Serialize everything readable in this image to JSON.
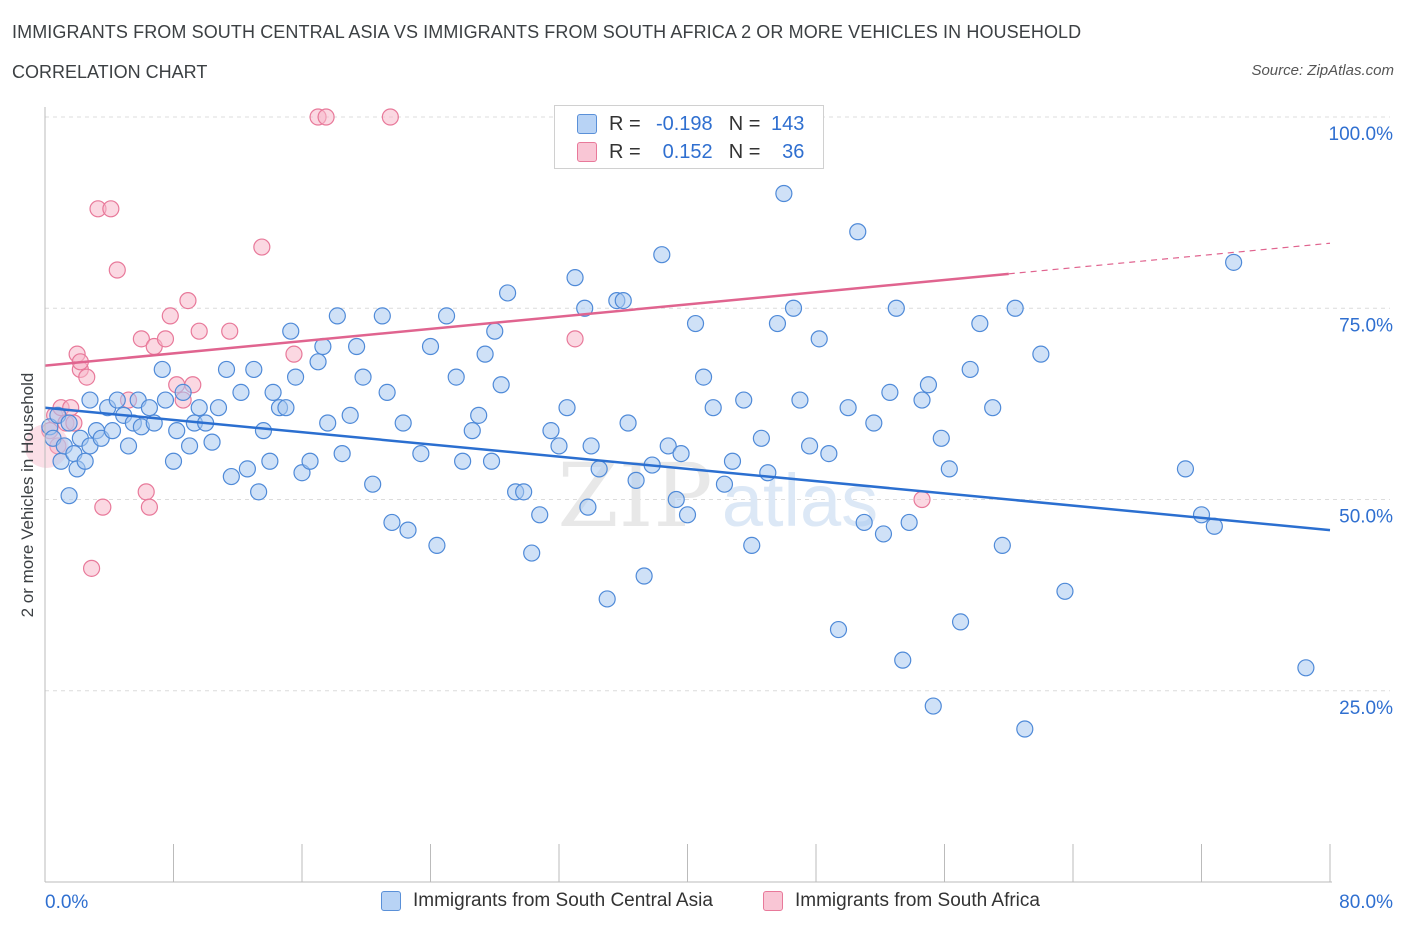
{
  "header": {
    "title": "IMMIGRANTS FROM SOUTH CENTRAL ASIA VS IMMIGRANTS FROM SOUTH AFRICA 2 OR MORE VEHICLES IN HOUSEHOLD",
    "subtitle": "CORRELATION CHART",
    "source": "Source: ZipAtlas.com"
  },
  "legend": {
    "r_label": "R =",
    "n_label": "N =",
    "series1": {
      "r": "-0.198",
      "n": "143"
    },
    "series2": {
      "r": "0.152",
      "n": "36"
    }
  },
  "colors": {
    "blue_fill": "#a8c8f0",
    "blue_stroke": "#4f8ad8",
    "blue_line": "#2b6fd0",
    "pink_fill": "#f7b8ca",
    "pink_stroke": "#e8799a",
    "pink_line": "#e0648f",
    "axis_text": "#2f6fd0"
  },
  "chart_data": {
    "type": "scatter",
    "title": "IMMIGRANTS FROM SOUTH CENTRAL ASIA VS IMMIGRANTS FROM SOUTH AFRICA 2 OR MORE VEHICLES IN HOUSEHOLD",
    "xlabel": "",
    "ylabel": "2 or more Vehicles in Household",
    "xlim": [
      0,
      80
    ],
    "ylim": [
      0,
      100
    ],
    "x_tick_labels": [
      "0.0%",
      "80.0%"
    ],
    "y_tick_labels": [
      "25.0%",
      "50.0%",
      "75.0%",
      "100.0%"
    ],
    "y_ticks": [
      25,
      50,
      75,
      100
    ],
    "watermark": "ZIPatlas",
    "series": [
      {
        "name": "Immigrants from South Central Asia",
        "color": "blue",
        "trend": {
          "x0": 0,
          "y0": 62.0,
          "x1": 80,
          "y1": 46.0
        },
        "points": [
          [
            0.3,
            59.5
          ],
          [
            0.5,
            58
          ],
          [
            0.8,
            61
          ],
          [
            1.0,
            55
          ],
          [
            1.2,
            57
          ],
          [
            1.5,
            60
          ],
          [
            1.8,
            56
          ],
          [
            2.0,
            54
          ],
          [
            2.2,
            58
          ],
          [
            2.5,
            55
          ],
          [
            2.8,
            57
          ],
          [
            1.5,
            50.5
          ],
          [
            2.8,
            63
          ],
          [
            3.2,
            59
          ],
          [
            3.5,
            58
          ],
          [
            3.9,
            62
          ],
          [
            4.2,
            59
          ],
          [
            4.5,
            63
          ],
          [
            4.9,
            61
          ],
          [
            5.2,
            57
          ],
          [
            5.5,
            60
          ],
          [
            5.8,
            63
          ],
          [
            6.0,
            59.5
          ],
          [
            6.5,
            62
          ],
          [
            6.8,
            60
          ],
          [
            7.3,
            67
          ],
          [
            7.5,
            63
          ],
          [
            8.0,
            55
          ],
          [
            8.2,
            59
          ],
          [
            8.6,
            64
          ],
          [
            9.0,
            57
          ],
          [
            9.3,
            60
          ],
          [
            9.6,
            62
          ],
          [
            10.0,
            60
          ],
          [
            10.4,
            57.5
          ],
          [
            10.8,
            62
          ],
          [
            11.3,
            67
          ],
          [
            11.6,
            53
          ],
          [
            12.2,
            64
          ],
          [
            12.6,
            54
          ],
          [
            13.0,
            67
          ],
          [
            13.3,
            51
          ],
          [
            13.6,
            59
          ],
          [
            14.0,
            55
          ],
          [
            14.2,
            64
          ],
          [
            14.6,
            62
          ],
          [
            15.0,
            62
          ],
          [
            15.3,
            72
          ],
          [
            15.6,
            66
          ],
          [
            16.0,
            53.5
          ],
          [
            16.5,
            55
          ],
          [
            17.0,
            68
          ],
          [
            17.3,
            70
          ],
          [
            17.6,
            60
          ],
          [
            18.2,
            74
          ],
          [
            18.5,
            56
          ],
          [
            19.0,
            61
          ],
          [
            19.4,
            70
          ],
          [
            19.8,
            66
          ],
          [
            20.4,
            52
          ],
          [
            21.0,
            74
          ],
          [
            21.3,
            64
          ],
          [
            21.6,
            47
          ],
          [
            22.3,
            60
          ],
          [
            22.6,
            46
          ],
          [
            23.4,
            56
          ],
          [
            24.0,
            70
          ],
          [
            24.4,
            44
          ],
          [
            25.0,
            74
          ],
          [
            25.6,
            66
          ],
          [
            26.0,
            55
          ],
          [
            26.6,
            59
          ],
          [
            27.0,
            61
          ],
          [
            27.4,
            69
          ],
          [
            27.8,
            55
          ],
          [
            28.4,
            65
          ],
          [
            28.8,
            77
          ],
          [
            29.3,
            51
          ],
          [
            29.8,
            51
          ],
          [
            30.3,
            43
          ],
          [
            30.8,
            48
          ],
          [
            31.5,
            59
          ],
          [
            32.0,
            57
          ],
          [
            32.5,
            62
          ],
          [
            33.0,
            79
          ],
          [
            33.6,
            75
          ],
          [
            34.0,
            57
          ],
          [
            34.5,
            54
          ],
          [
            35.0,
            37
          ],
          [
            35.6,
            76
          ],
          [
            36.0,
            76
          ],
          [
            36.3,
            60
          ],
          [
            36.8,
            52.5
          ],
          [
            37.3,
            40
          ],
          [
            37.8,
            54.5
          ],
          [
            38.4,
            82
          ],
          [
            38.8,
            57
          ],
          [
            39.3,
            50
          ],
          [
            39.6,
            56
          ],
          [
            40.0,
            48
          ],
          [
            40.5,
            73
          ],
          [
            41.0,
            66
          ],
          [
            41.6,
            62
          ],
          [
            42.3,
            52
          ],
          [
            42.8,
            55
          ],
          [
            43.5,
            63
          ],
          [
            44.0,
            44
          ],
          [
            44.6,
            58
          ],
          [
            45.0,
            53.5
          ],
          [
            45.6,
            73
          ],
          [
            46.0,
            90
          ],
          [
            46.6,
            75
          ],
          [
            47.0,
            63
          ],
          [
            47.6,
            57
          ],
          [
            48.2,
            71
          ],
          [
            48.8,
            56
          ],
          [
            49.4,
            33
          ],
          [
            50.0,
            62
          ],
          [
            50.6,
            85
          ],
          [
            51.0,
            47
          ],
          [
            51.6,
            60
          ],
          [
            52.2,
            45.5
          ],
          [
            52.6,
            64
          ],
          [
            53.0,
            75
          ],
          [
            53.4,
            29
          ],
          [
            53.8,
            47
          ],
          [
            54.6,
            63
          ],
          [
            55.0,
            65
          ],
          [
            55.3,
            23
          ],
          [
            55.8,
            58
          ],
          [
            56.3,
            54
          ],
          [
            57.0,
            34
          ],
          [
            57.6,
            67
          ],
          [
            58.2,
            73
          ],
          [
            59.0,
            62
          ],
          [
            59.6,
            44
          ],
          [
            60.4,
            75
          ],
          [
            61.0,
            20
          ],
          [
            62.0,
            69
          ],
          [
            63.5,
            38
          ],
          [
            72.0,
            48
          ],
          [
            72.8,
            46.5
          ],
          [
            74.0,
            81
          ],
          [
            71.0,
            54
          ],
          [
            78.5,
            28
          ],
          [
            33.8,
            49
          ],
          [
            28.0,
            72
          ]
        ]
      },
      {
        "name": "Immigrants from South Africa",
        "color": "pink",
        "trend": {
          "x0": 0,
          "y0": 67.5,
          "x1": 80,
          "y1": 83.5,
          "solid_to_x": 60
        },
        "points": [
          [
            0.3,
            59
          ],
          [
            0.6,
            61
          ],
          [
            0.8,
            57
          ],
          [
            1.0,
            62
          ],
          [
            1.3,
            60
          ],
          [
            1.6,
            62
          ],
          [
            1.8,
            60
          ],
          [
            2.0,
            69
          ],
          [
            2.2,
            67
          ],
          [
            2.6,
            66
          ],
          [
            2.9,
            41
          ],
          [
            3.3,
            88
          ],
          [
            3.6,
            49
          ],
          [
            4.1,
            88
          ],
          [
            4.5,
            80
          ],
          [
            5.2,
            63
          ],
          [
            6.0,
            71
          ],
          [
            6.3,
            51
          ],
          [
            6.5,
            49
          ],
          [
            6.8,
            70
          ],
          [
            7.5,
            71
          ],
          [
            7.8,
            74
          ],
          [
            8.2,
            65
          ],
          [
            8.6,
            63
          ],
          [
            8.9,
            76
          ],
          [
            9.2,
            65
          ],
          [
            9.6,
            72
          ],
          [
            11.5,
            72
          ],
          [
            13.5,
            83
          ],
          [
            15.5,
            69
          ],
          [
            17.0,
            100
          ],
          [
            17.5,
            100
          ],
          [
            21.5,
            100
          ],
          [
            33.0,
            71
          ],
          [
            54.6,
            50
          ],
          [
            2.2,
            68
          ]
        ]
      }
    ]
  },
  "bottom_legend": {
    "item1": "Immigrants from South Central Asia",
    "item2": "Immigrants from South Africa"
  }
}
